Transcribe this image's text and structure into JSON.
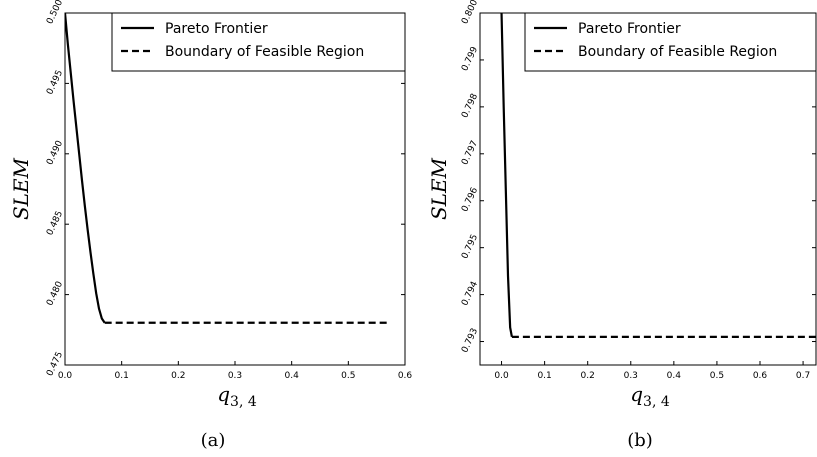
{
  "chart_data": [
    {
      "type": "line",
      "caption": "(a)",
      "xlabel": "q",
      "xlabel_sub": "3, 4",
      "ylabel": "SLEM",
      "xlim": [
        0,
        0.6
      ],
      "ylim": [
        0.475,
        0.5
      ],
      "xticks": [
        0.0,
        0.1,
        0.2,
        0.3,
        0.4,
        0.5,
        0.6
      ],
      "xtick_labels": [
        "0.0",
        "0.1",
        "0.2",
        "0.3",
        "0.4",
        "0.5",
        "0.6"
      ],
      "yticks": [
        0.475,
        0.48,
        0.485,
        0.49,
        0.495,
        0.5
      ],
      "ytick_labels": [
        "0.475",
        "0.480",
        "0.485",
        "0.490",
        "0.495",
        "0.500"
      ],
      "grid": false,
      "legend_position": "top-right",
      "series": [
        {
          "name": "Pareto Frontier",
          "style": "solid",
          "points": [
            [
              0.0,
              0.5
            ],
            [
              0.005,
              0.4978
            ],
            [
              0.01,
              0.4958
            ],
            [
              0.015,
              0.4938
            ],
            [
              0.02,
              0.4919
            ],
            [
              0.025,
              0.49
            ],
            [
              0.03,
              0.4881
            ],
            [
              0.035,
              0.4863
            ],
            [
              0.04,
              0.4846
            ],
            [
              0.045,
              0.483
            ],
            [
              0.05,
              0.4815
            ],
            [
              0.055,
              0.4801
            ],
            [
              0.06,
              0.479
            ],
            [
              0.065,
              0.4783
            ],
            [
              0.07,
              0.478
            ]
          ]
        },
        {
          "name": "Boundary of Feasible Region",
          "style": "dashed",
          "points": [
            [
              0.07,
              0.478
            ],
            [
              0.57,
              0.478
            ]
          ]
        }
      ]
    },
    {
      "type": "line",
      "caption": "(b)",
      "xlabel": "q",
      "xlabel_sub": "3, 4",
      "ylabel": "SLEM",
      "xlim": [
        -0.05,
        0.73
      ],
      "ylim": [
        0.7925,
        0.8
      ],
      "xticks": [
        0.0,
        0.1,
        0.2,
        0.3,
        0.4,
        0.5,
        0.6,
        0.7
      ],
      "xtick_labels": [
        "0.0",
        "0.1",
        "0.2",
        "0.3",
        "0.4",
        "0.5",
        "0.6",
        "0.7"
      ],
      "yticks": [
        0.793,
        0.794,
        0.795,
        0.796,
        0.797,
        0.798,
        0.799,
        0.8
      ],
      "ytick_labels": [
        "0.793",
        "0.794",
        "0.795",
        "0.796",
        "0.797",
        "0.798",
        "0.799",
        "0.800"
      ],
      "grid": false,
      "legend_position": "top-right",
      "series": [
        {
          "name": "Pareto Frontier",
          "style": "solid",
          "points": [
            [
              0.0,
              0.8
            ],
            [
              0.005,
              0.798
            ],
            [
              0.01,
              0.7962
            ],
            [
              0.015,
              0.7944
            ],
            [
              0.02,
              0.7933
            ],
            [
              0.024,
              0.7931
            ]
          ]
        },
        {
          "name": "Boundary of Feasible Region",
          "style": "dashed",
          "points": [
            [
              0.024,
              0.7931
            ],
            [
              0.73,
              0.7931
            ]
          ]
        }
      ]
    }
  ]
}
